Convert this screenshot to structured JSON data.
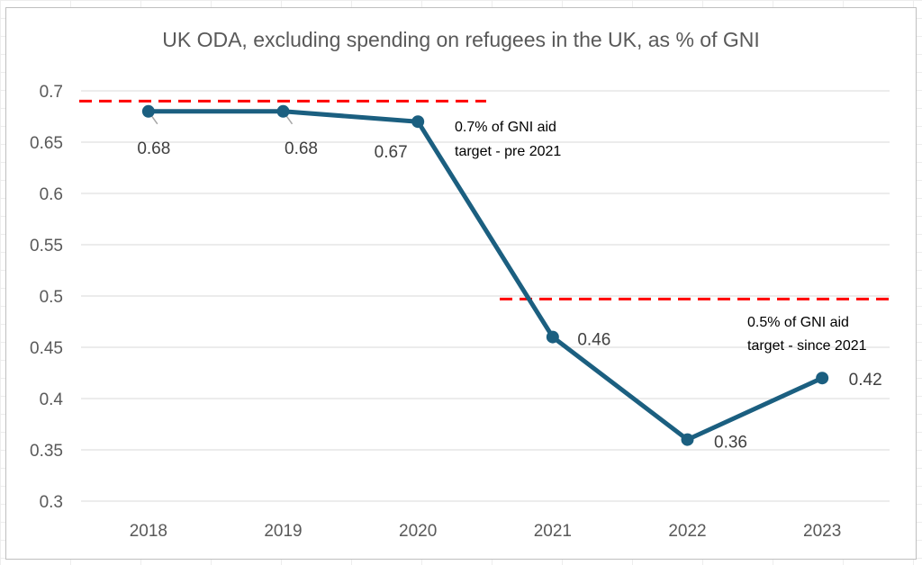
{
  "chart_data": {
    "type": "line",
    "title": "UK ODA, excluding spending on refugees in the UK, as % of GNI",
    "categories": [
      "2018",
      "2019",
      "2020",
      "2021",
      "2022",
      "2023"
    ],
    "series": [
      {
        "values": [
          0.68,
          0.68,
          0.67,
          0.46,
          0.36,
          0.42
        ]
      }
    ],
    "data_labels": [
      "0.68",
      "0.68",
      "0.67",
      "0.46",
      "0.36",
      "0.42"
    ],
    "ylim": [
      0.3,
      0.7
    ],
    "yticks": [
      "0.3",
      "0.35",
      "0.4",
      "0.45",
      "0.5",
      "0.55",
      "0.6",
      "0.65",
      "0.7"
    ],
    "grid": true,
    "reference_lines": [
      {
        "value": 0.69,
        "from": "2018",
        "to": "2020",
        "label_lines": [
          "0.7% of GNI aid",
          "target - pre 2021"
        ]
      },
      {
        "value": 0.497,
        "from": "2021",
        "to": "2023",
        "label_lines": [
          "0.5% of GNI aid",
          "target - since 2021"
        ]
      }
    ],
    "colors": {
      "series": "#1b5f80",
      "reference": "#ff0000",
      "grid": "#d9d9d9"
    }
  }
}
